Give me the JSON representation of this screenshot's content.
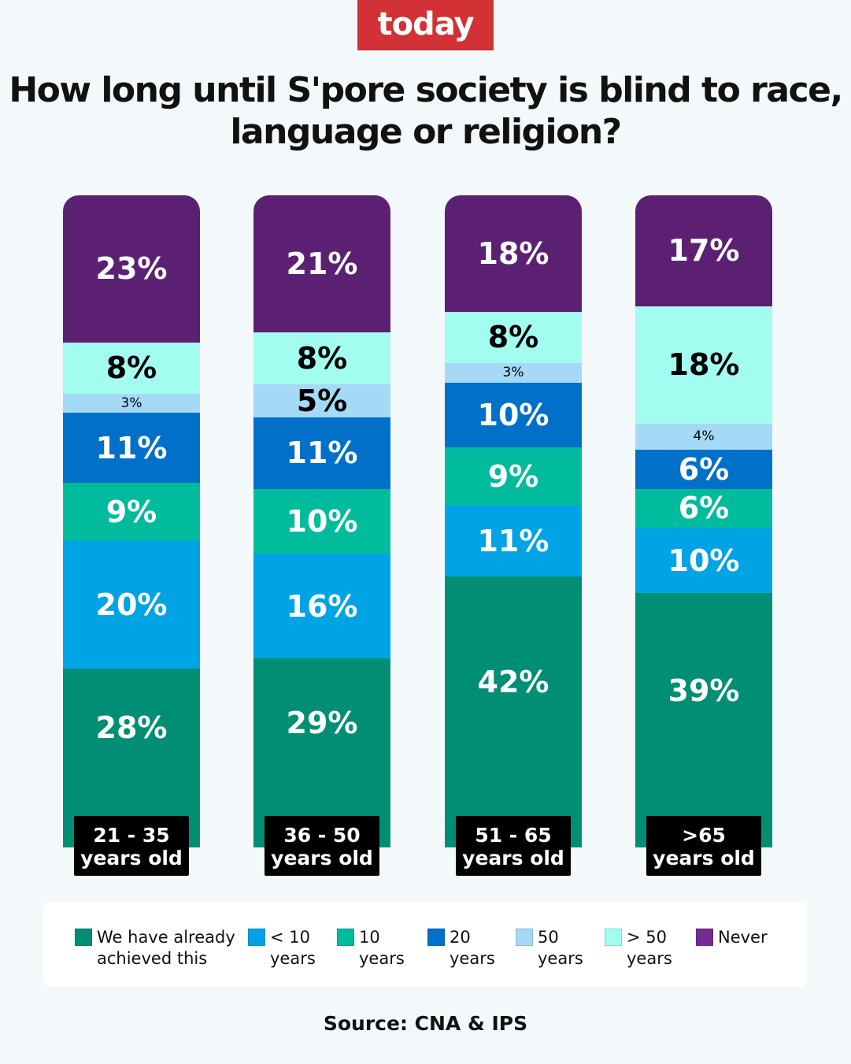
{
  "logo": "today",
  "title": "How long until S'pore society is blind to race, language or religion?",
  "source": "Source: CNA & IPS",
  "chart_data": {
    "type": "bar",
    "stacked": true,
    "title": "How long until S'pore society is blind to race, language or religion?",
    "categories": [
      "21 - 35 years old",
      "36 - 50 years old",
      "51 - 65 years old",
      ">65 years old"
    ],
    "category_lines": [
      [
        "21 - 35",
        "years old"
      ],
      [
        "36 - 50",
        "years old"
      ],
      [
        "51 - 65",
        "years old"
      ],
      [
        ">65",
        "years old"
      ]
    ],
    "series": [
      {
        "name": "We have already achieved this",
        "legend": [
          "We have already",
          "achieved this"
        ],
        "color": "#008e74",
        "values": [
          28,
          29,
          42,
          39
        ]
      },
      {
        "name": "< 10 years",
        "legend": [
          "< 10",
          "years"
        ],
        "color": "#00a3e4",
        "values": [
          20,
          16,
          11,
          10
        ]
      },
      {
        "name": "10 years",
        "legend": [
          "10",
          "years"
        ],
        "color": "#00bc9c",
        "values": [
          9,
          10,
          9,
          6
        ]
      },
      {
        "name": "20 years",
        "legend": [
          "20",
          "years"
        ],
        "color": "#0070c8",
        "values": [
          11,
          11,
          10,
          6
        ]
      },
      {
        "name": "50 years",
        "legend": [
          "50",
          "years"
        ],
        "color": "#a4daf5",
        "values": [
          3,
          5,
          3,
          4
        ]
      },
      {
        "name": "> 50 years",
        "legend": [
          "> 50",
          "years"
        ],
        "color": "#a3fcf0",
        "values": [
          8,
          8,
          8,
          18
        ]
      },
      {
        "name": "Never",
        "legend": [
          "Never",
          ""
        ],
        "color": "#5c2073",
        "legend_color": "#732b90",
        "values": [
          23,
          21,
          18,
          17
        ]
      }
    ],
    "unit": "%"
  }
}
